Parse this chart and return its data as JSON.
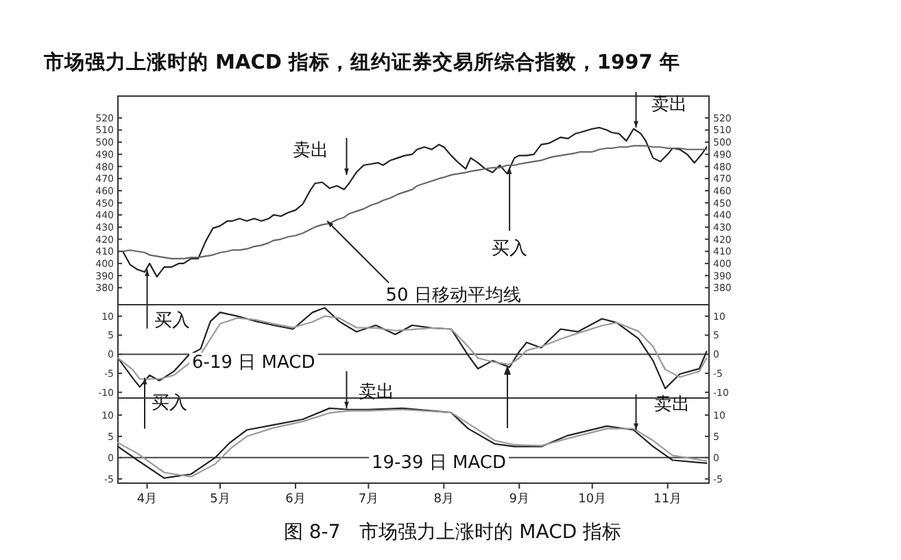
{
  "chart_data": [
    {
      "type": "line",
      "title": "市场强力上涨时的 MACD 指标，纽约证券交易所综合指数，1997 年",
      "x": [
        "1997-03-24",
        "1997-03-27",
        "1997-03-30",
        "1997-04-02",
        "1997-04-04",
        "1997-04-07",
        "1997-04-10",
        "1997-04-13",
        "1997-04-16",
        "1997-04-18",
        "1997-04-21",
        "1997-04-24",
        "1997-04-27",
        "1997-04-30",
        "1997-05-03",
        "1997-05-06",
        "1997-05-08",
        "1997-05-11",
        "1997-05-14",
        "1997-05-17",
        "1997-05-20",
        "1997-05-23",
        "1997-05-25",
        "1997-05-28",
        "1997-05-31",
        "1997-06-03",
        "1997-06-06",
        "1997-06-09",
        "1997-06-11",
        "1997-06-14",
        "1997-06-17",
        "1997-06-20",
        "1997-06-23",
        "1997-06-25",
        "1997-06-28",
        "1997-07-01",
        "1997-07-04",
        "1997-07-07",
        "1997-07-09",
        "1997-07-12",
        "1997-07-15",
        "1997-07-18",
        "1997-07-21",
        "1997-07-23",
        "1997-07-26",
        "1997-07-29",
        "1997-08-01",
        "1997-08-03",
        "1997-08-06",
        "1997-08-09",
        "1997-08-12",
        "1997-08-14",
        "1997-08-17",
        "1997-08-20",
        "1997-08-23",
        "1997-08-26",
        "1997-08-29",
        "1997-09-01",
        "1997-09-03",
        "1997-09-06",
        "1997-09-09",
        "1997-09-12",
        "1997-09-15",
        "1997-09-17",
        "1997-09-20",
        "1997-09-23",
        "1997-09-26",
        "1997-09-28",
        "1997-10-03",
        "1997-10-06",
        "1997-10-09",
        "1997-10-11",
        "1997-10-14",
        "1997-10-17",
        "1997-10-20",
        "1997-10-23",
        "1997-10-25",
        "1997-10-28",
        "1997-10-31",
        "1997-11-03",
        "1997-11-05",
        "1997-11-08",
        "1997-11-11",
        "1997-11-14",
        "1997-11-17",
        "1997-11-19"
      ],
      "xlim": [
        "1997-03-22",
        "1997-11-20"
      ],
      "ylim": [
        366,
        538
      ],
      "yticks": [
        380,
        390,
        400,
        410,
        420,
        430,
        440,
        450,
        460,
        470,
        480,
        490,
        500,
        510,
        520
      ],
      "y2lim": [
        366,
        538
      ],
      "y2ticks": [
        380,
        390,
        400,
        410,
        420,
        430,
        440,
        450,
        460,
        470,
        480,
        490,
        500,
        510,
        520
      ],
      "tick_labels": "y",
      "series": [
        {
          "type": "line",
          "color": "#222222",
          "values": [
            410,
            399,
            395,
            393,
            400,
            389,
            397,
            397,
            400,
            400,
            404,
            404,
            418,
            429,
            431,
            435,
            435,
            437,
            435,
            437,
            435,
            437,
            440,
            439,
            442,
            444,
            449,
            460,
            466,
            467,
            462,
            464,
            461,
            466,
            475,
            481,
            482,
            483,
            481,
            485,
            487,
            489,
            490,
            494,
            496,
            494,
            498,
            496,
            489,
            483,
            478,
            487,
            483,
            478,
            475,
            481,
            474,
            487,
            489,
            489,
            490,
            498,
            499,
            501,
            504,
            503,
            507,
            508,
            511,
            512,
            510,
            508,
            507,
            501,
            511,
            507,
            501,
            487,
            484,
            490,
            495,
            494,
            490,
            483,
            490,
            496
          ]
        },
        {
          "type": "line",
          "color": "#666666",
          "values": [
            410,
            411,
            410,
            409,
            407,
            406,
            405,
            404,
            404,
            404,
            405,
            405,
            406,
            407,
            409,
            410,
            411,
            411,
            412,
            414,
            415,
            417,
            419,
            420,
            422,
            423,
            425,
            428,
            430,
            432,
            433,
            436,
            438,
            441,
            443,
            445,
            448,
            450,
            452,
            454,
            457,
            459,
            461,
            464,
            466,
            468,
            470,
            471,
            473,
            474,
            475,
            476,
            477,
            478,
            479,
            479,
            481,
            481,
            482,
            483,
            484,
            485,
            487,
            488,
            489,
            490,
            491,
            492,
            492,
            494,
            495,
            495,
            496,
            496,
            497,
            497,
            497,
            496,
            496,
            495,
            495,
            495,
            494,
            494,
            494,
            494
          ]
        }
      ],
      "annotations": [
        {
          "text": "卖出",
          "x": "1997-06-24",
          "y": 473
        },
        {
          "text": "买入",
          "x": "1997-08-30",
          "y": 479
        },
        {
          "text": "50 日移动平均线",
          "x": "1997-06-16",
          "y": 435
        },
        {
          "text": "卖出",
          "x": "1997-10-21",
          "y": 512
        },
        {
          "text": "买入",
          "x": "1997-04-03",
          "y": 395
        }
      ]
    },
    {
      "type": "line",
      "x": [
        "1997-03-22",
        "1997-03-28",
        "1997-03-31",
        "1997-04-04",
        "1997-04-08",
        "1997-04-14",
        "1997-04-20",
        "1997-04-25",
        "1997-04-29",
        "1997-05-03",
        "1997-05-10",
        "1997-05-18",
        "1997-05-25",
        "1997-06-02",
        "1997-06-10",
        "1997-06-15",
        "1997-06-21",
        "1997-06-28",
        "1997-07-06",
        "1997-07-14",
        "1997-07-21",
        "1997-07-29",
        "1997-08-06",
        "1997-08-13",
        "1997-08-17",
        "1997-08-23",
        "1997-08-30",
        "1997-09-03",
        "1997-09-06",
        "1997-09-12",
        "1997-09-20",
        "1997-09-27",
        "1997-10-07",
        "1997-10-13",
        "1997-10-22",
        "1997-10-28",
        "1997-11-02",
        "1997-11-08",
        "1997-11-16",
        "1997-11-19"
      ],
      "xlim": [
        "1997-03-22",
        "1997-11-20"
      ],
      "ylim": [
        -11.5,
        13
      ],
      "yticks": [
        -10,
        -5,
        0,
        5,
        10
      ],
      "y2lim": [
        -11.5,
        13
      ],
      "y2ticks": [
        -10,
        -5,
        0,
        5,
        10
      ],
      "tick_labels": "y",
      "series": [
        {
          "type": "line",
          "color": "#222222",
          "values": [
            -1,
            -6.2,
            -8.6,
            -5.5,
            -6.9,
            -4.5,
            -0.3,
            1.4,
            8.6,
            11,
            10,
            8.6,
            7.6,
            6.6,
            11,
            12.2,
            8.6,
            5.9,
            7.6,
            5.2,
            7.6,
            6.9,
            6.6,
            -0.3,
            -3.8,
            -1.7,
            -3.4,
            0.7,
            3.1,
            1.7,
            6.6,
            5.9,
            9.3,
            8.3,
            4.1,
            -1.7,
            -9,
            -5.2,
            -3.8,
            0.7
          ]
        },
        {
          "type": "line",
          "color": "#9a9a9a",
          "values": [
            -1,
            -4,
            -6.5,
            -6.5,
            -6.5,
            -5.5,
            -2.5,
            0,
            4,
            8,
            9.5,
            9,
            8,
            7,
            8.5,
            10,
            9.5,
            7,
            6.9,
            6.2,
            6.5,
            6.9,
            6.6,
            2,
            -1,
            -2,
            -2.7,
            -1,
            1,
            2,
            4,
            5.5,
            7.5,
            8.3,
            6,
            2,
            -4,
            -6,
            -4.5,
            -1
          ]
        }
      ],
      "ref_lines": [
        {
          "axis": "y",
          "value": 0
        }
      ],
      "annotations": [
        "6-19 日 MACD",
        {
          "text": "买入",
          "x": "1997-04-02",
          "y": -6.2
        }
      ]
    },
    {
      "type": "line",
      "x": [
        "1997-03-22",
        "1997-03-30",
        "1997-04-10",
        "1997-04-21",
        "1997-05-01",
        "1997-05-07",
        "1997-05-14",
        "1997-05-25",
        "1997-06-06",
        "1997-06-17",
        "1997-06-25",
        "1997-07-03",
        "1997-07-17",
        "1997-08-06",
        "1997-08-13",
        "1997-08-24",
        "1997-09-01",
        "1997-09-12",
        "1997-09-23",
        "1997-10-09",
        "1997-10-20",
        "1997-10-28",
        "1997-11-05",
        "1997-11-19"
      ],
      "xlim": [
        "1997-03-22",
        "1997-11-20"
      ],
      "ylim": [
        -6,
        14
      ],
      "yticks": [
        -5,
        0,
        5,
        10
      ],
      "y2lim": [
        -6,
        14
      ],
      "y2ticks": [
        -5,
        0,
        5,
        10
      ],
      "xticks": [
        {
          "value": "1997-04-03",
          "label": "4月"
        },
        {
          "value": "1997-05-03",
          "label": "5月"
        },
        {
          "value": "1997-06-03",
          "label": "6月"
        },
        {
          "value": "1997-07-03",
          "label": "7月"
        },
        {
          "value": "1997-08-03",
          "label": "8月"
        },
        {
          "value": "1997-09-03",
          "label": "9月"
        },
        {
          "value": "1997-10-03",
          "label": "10月"
        },
        {
          "value": "1997-11-03",
          "label": "11月"
        }
      ],
      "series": [
        {
          "type": "line",
          "color": "#222222",
          "values": [
            2.6,
            -0.6,
            -4.8,
            -3.9,
            0,
            3.5,
            6.5,
            7.7,
            9,
            11.6,
            11.3,
            11.3,
            11.6,
            10.6,
            6.8,
            3.2,
            2.6,
            2.6,
            5.2,
            7.4,
            6.5,
            2.6,
            -0.6,
            -1.3
          ]
        },
        {
          "type": "line",
          "color": "#9a9a9a",
          "values": [
            3.5,
            1,
            -3.5,
            -4.5,
            -1.5,
            2,
            5,
            7,
            8.5,
            10.5,
            11,
            11,
            11.3,
            10.6,
            8,
            4,
            3,
            2.8,
            4.5,
            6.8,
            6.8,
            4,
            0.5,
            -0.8
          ]
        }
      ],
      "ref_lines": [
        {
          "axis": "y",
          "value": 0
        }
      ],
      "annotations": [
        "19-39 日 MACD",
        {
          "text": "卖出",
          "x": "1997-06-24",
          "y": 11.6
        },
        {
          "text": "卖出",
          "x": "1997-10-21",
          "y": 6.5
        },
        "图 8-7　市场强力上涨时的 MACD 指标"
      ]
    }
  ]
}
